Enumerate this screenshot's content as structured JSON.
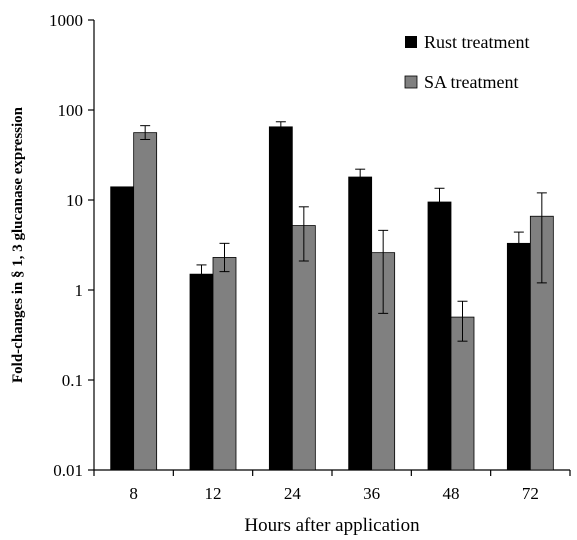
{
  "chart_data": {
    "type": "bar",
    "title": "",
    "xlabel": "Hours after application",
    "ylabel": "Fold-changes in § 1, 3 glucanase expression",
    "yscale": "log",
    "ylim": [
      0.01,
      1000
    ],
    "yticks": [
      "0.01",
      "0.1",
      "1",
      "10",
      "100",
      "1000"
    ],
    "categories": [
      "8",
      "12",
      "24",
      "36",
      "48",
      "72"
    ],
    "grid": false,
    "legend_position": "top-right",
    "series": [
      {
        "name": "Rust treatment",
        "color": "#000000",
        "values": [
          14,
          1.5,
          65,
          18,
          9.5,
          3.3
        ],
        "error_high": [
          null,
          1.9,
          74,
          22,
          13.5,
          4.4
        ],
        "error_low": [
          null,
          1.3,
          60,
          15,
          9,
          3
        ]
      },
      {
        "name": "SA treatment",
        "color": "#808080",
        "values": [
          56,
          2.3,
          5.2,
          2.6,
          0.5,
          6.6
        ],
        "error_high": [
          67,
          3.3,
          8.4,
          4.6,
          0.75,
          12
        ],
        "error_low": [
          47,
          1.6,
          2.1,
          0.55,
          0.27,
          1.2
        ]
      }
    ]
  }
}
